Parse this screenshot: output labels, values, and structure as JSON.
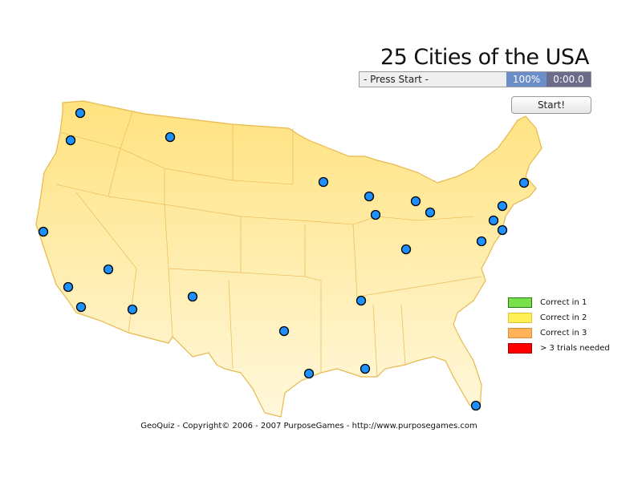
{
  "title": "25 Cities of the USA",
  "status_bar": {
    "status": "- Press Start -",
    "progress": "100%",
    "timer": "0:00.0"
  },
  "start_button": "Start!",
  "legend": [
    {
      "label": "Correct in 1",
      "color": "#77e04a",
      "border": "#2b7a1a"
    },
    {
      "label": "Correct in 2",
      "color": "#fff055",
      "border": "#e0c030"
    },
    {
      "label": "Correct in 3",
      "color": "#ffb257",
      "border": "#d09040"
    },
    {
      "label": "> 3 trials needed",
      "color": "#ff0000",
      "border": "#a00000"
    }
  ],
  "colors": {
    "map_fill_top": "#ffe27f",
    "map_fill_bottom": "#fff8dc",
    "map_stroke": "#e8b84c",
    "city_dot": "#1e90ff"
  },
  "footer": "GeoQuiz - Copyright© 2006 - 2007 PurposeGames - http://www.purposegames.com"
}
